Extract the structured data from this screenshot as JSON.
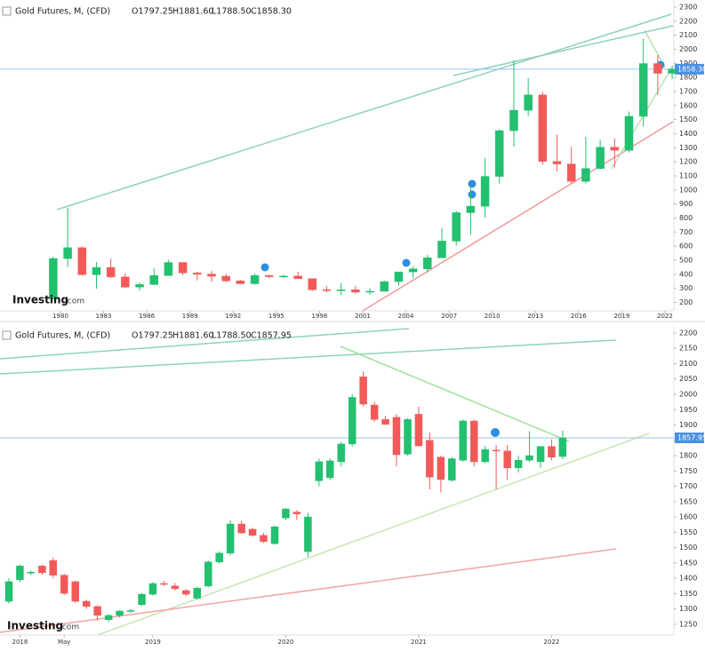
{
  "chart_data": [
    {
      "type": "candlestick",
      "title": "Gold Futures, M, (CFD)",
      "ohlc_header": [
        "O1797.25",
        "H1881.60",
        "L1788.50",
        "C1858.30"
      ],
      "watermark": [
        "Investing",
        ".com"
      ],
      "up_color": "#22c06f",
      "down_color": "#f25a5a",
      "x": [
        1979.5,
        1980.5,
        1981.5,
        1982.5,
        1983.5,
        1984.5,
        1985.5,
        1986.5,
        1987.5,
        1988.5,
        1989.5,
        1990.5,
        1991.5,
        1992.5,
        1993.5,
        1994.5,
        1995.5,
        1996.5,
        1997.5,
        1998.5,
        1999.5,
        2000.5,
        2001.5,
        2002.5,
        2003.5,
        2004.5,
        2005.5,
        2006.5,
        2007.5,
        2008.5,
        2009.5,
        2010.5,
        2011.5,
        2012.5,
        2013.5,
        2014.5,
        2015.5,
        2016.5,
        2017.5,
        2018.5,
        2019.5,
        2020.5,
        2021.5,
        2022.5
      ],
      "open": [
        226,
        512,
        589,
        397,
        448,
        381,
        309,
        327,
        391,
        484,
        410,
        401,
        386,
        353,
        333,
        391,
        383,
        387,
        369,
        290,
        288,
        290,
        273,
        279,
        348,
        417,
        438,
        517,
        636,
        838,
        884,
        1096,
        1421,
        1566,
        1675,
        1202,
        1184,
        1061,
        1152,
        1303,
        1282,
        1523,
        1898,
        1829
      ],
      "high": [
        524,
        873,
        599,
        488,
        511,
        406,
        341,
        442,
        502,
        485,
        418,
        424,
        404,
        360,
        406,
        397,
        396,
        418,
        369,
        314,
        338,
        318,
        301,
        354,
        417,
        456,
        537,
        730,
        848,
        1033,
        1227,
        1431,
        1921,
        1796,
        1697,
        1392,
        1307,
        1377,
        1357,
        1366,
        1557,
        2075,
        1959,
        1881
      ],
      "low": [
        216,
        453,
        391,
        297,
        374,
        303,
        284,
        326,
        390,
        394,
        356,
        345,
        344,
        330,
        326,
        370,
        372,
        367,
        283,
        273,
        252,
        263,
        255,
        277,
        319,
        372,
        410,
        517,
        603,
        681,
        803,
        1044,
        1308,
        1527,
        1180,
        1131,
        1046,
        1046,
        1146,
        1160,
        1266,
        1451,
        1676,
        1788
      ],
      "close": [
        512,
        589,
        397,
        448,
        381,
        309,
        327,
        391,
        484,
        410,
        401,
        386,
        353,
        333,
        391,
        383,
        387,
        369,
        290,
        288,
        290,
        273,
        279,
        348,
        417,
        438,
        517,
        636,
        838,
        884,
        1096,
        1421,
        1566,
        1675,
        1202,
        1184,
        1061,
        1152,
        1303,
        1282,
        1523,
        1898,
        1829,
        1858
      ],
      "xlim": [
        1975.8,
        2022.62
      ],
      "xticks": [
        1980,
        1983,
        1986,
        1989,
        1992,
        1995,
        1998,
        2001,
        2004,
        2007,
        2010,
        2013,
        2016,
        2019,
        2022
      ],
      "ylim": [
        140,
        2350
      ],
      "yticks": [
        200,
        300,
        400,
        500,
        600,
        700,
        800,
        900,
        1000,
        1100,
        1200,
        1300,
        1400,
        1500,
        1600,
        1700,
        1800,
        1900,
        2000,
        2100,
        2200,
        2300
      ],
      "last_price": {
        "value": 1858.3,
        "label": "1858.30"
      }
    },
    {
      "type": "candlestick",
      "title": "Gold Futures, M, (CFD)",
      "ohlc_header": [
        "O1797.25",
        "H1881.60",
        "L1788.50",
        "C1857.95"
      ],
      "watermark": [
        "Investing",
        ".com"
      ],
      "up_color": "#22c06f",
      "down_color": "#f25a5a",
      "x": [
        2017.917,
        2018,
        2018.083,
        2018.167,
        2018.25,
        2018.333,
        2018.417,
        2018.5,
        2018.583,
        2018.667,
        2018.75,
        2018.833,
        2018.917,
        2019,
        2019.083,
        2019.167,
        2019.25,
        2019.333,
        2019.417,
        2019.5,
        2019.583,
        2019.667,
        2019.75,
        2019.833,
        2019.917,
        2020,
        2020.083,
        2020.167,
        2020.25,
        2020.333,
        2020.417,
        2020.5,
        2020.583,
        2020.667,
        2020.75,
        2020.833,
        2020.917,
        2021,
        2021.083,
        2021.167,
        2021.25,
        2021.333,
        2021.417,
        2021.5,
        2021.583,
        2021.667,
        2021.75,
        2021.833,
        2021.917,
        2022,
        2022.083
      ],
      "open": [
        1325,
        1395,
        1418,
        1440,
        1458,
        1410,
        1389,
        1325,
        1308,
        1265,
        1279,
        1293,
        1314,
        1348,
        1383,
        1375,
        1360,
        1335,
        1375,
        1453,
        1482,
        1577,
        1560,
        1540,
        1513,
        1597,
        1616,
        1487,
        1718,
        1728,
        1780,
        1838,
        2057,
        1965,
        1918,
        1925,
        1805,
        1935,
        1850,
        1795,
        1720,
        1785,
        1913,
        1780,
        1818,
        1815,
        1760,
        1785,
        1780,
        1830,
        1797.25
      ],
      "high": [
        1400,
        1445,
        1425,
        1445,
        1468,
        1415,
        1392,
        1330,
        1312,
        1283,
        1296,
        1300,
        1352,
        1388,
        1392,
        1385,
        1365,
        1372,
        1458,
        1488,
        1590,
        1588,
        1565,
        1548,
        1572,
        1630,
        1622,
        1614,
        1790,
        1790,
        1845,
        2000,
        2075,
        1975,
        1930,
        1935,
        1922,
        1960,
        1875,
        1800,
        1795,
        1918,
        1918,
        1832,
        1835,
        1835,
        1800,
        1880,
        1830,
        1853,
        1881.6
      ],
      "low": [
        1318,
        1388,
        1410,
        1412,
        1400,
        1345,
        1320,
        1300,
        1262,
        1258,
        1272,
        1288,
        1310,
        1343,
        1375,
        1360,
        1342,
        1330,
        1370,
        1448,
        1475,
        1545,
        1535,
        1515,
        1510,
        1590,
        1590,
        1470,
        1700,
        1720,
        1765,
        1830,
        1960,
        1910,
        1900,
        1765,
        1800,
        1830,
        1690,
        1680,
        1715,
        1780,
        1765,
        1775,
        1690,
        1720,
        1745,
        1780,
        1760,
        1785,
        1788.5
      ],
      "close": [
        1389,
        1440,
        1420,
        1418,
        1410,
        1351,
        1325,
        1308,
        1279,
        1279,
        1293,
        1295,
        1348,
        1383,
        1380,
        1366,
        1348,
        1368,
        1453,
        1482,
        1577,
        1548,
        1540,
        1520,
        1568,
        1626,
        1610,
        1600,
        1780,
        1783,
        1838,
        1990,
        1968,
        1918,
        1902,
        1803,
        1918,
        1832,
        1730,
        1722,
        1790,
        1913,
        1780,
        1820,
        1816,
        1760,
        1785,
        1800,
        1830,
        1795,
        1857.95
      ],
      "xlim": [
        2017.85,
        2022.92
      ],
      "xticks": [
        2018,
        {
          "value": 2018.333,
          "label": "May"
        },
        2019,
        2020,
        2021,
        2022
      ],
      "ylim": [
        1215,
        2223
      ],
      "yticks": [
        1250,
        1300,
        1350,
        1400,
        1450,
        1500,
        1550,
        1600,
        1650,
        1700,
        1750,
        1800,
        1850,
        1900,
        1950,
        2000,
        2050,
        2100,
        2150,
        2200
      ],
      "last_price": {
        "value": 1857.95,
        "label": "1857.95"
      }
    }
  ]
}
